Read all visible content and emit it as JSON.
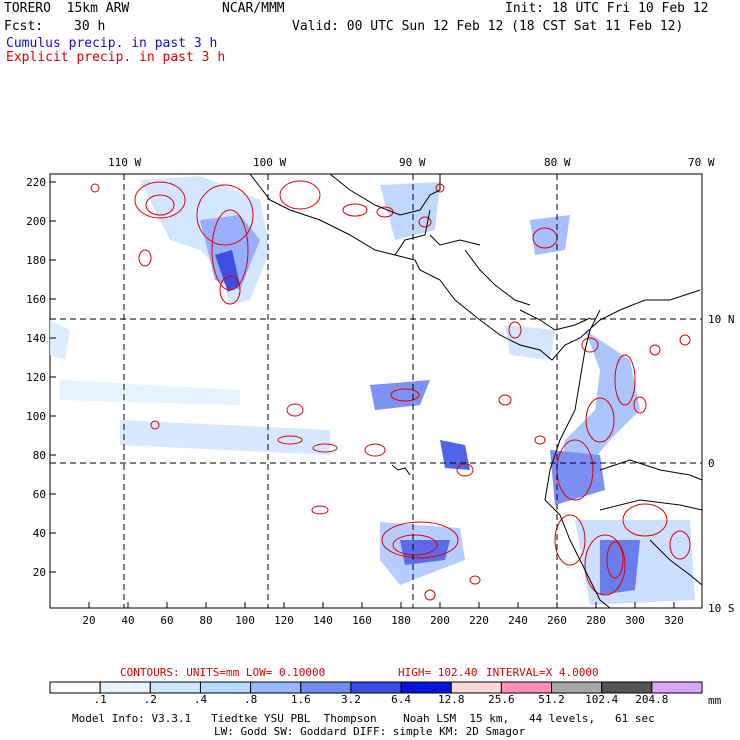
{
  "header": {
    "model": "TORERO  15km ARW",
    "org": "NCAR/MMM",
    "init": "Init: 18 UTC Fri 10 Feb 12",
    "fcst_label": "Fcst:",
    "fcst_value": "30 h",
    "valid": "Valid: 00 UTC Sun 12 Feb 12 (18 CST Sat 11 Feb 12)",
    "legend_cumulus": "Cumulus precip. in past 3 h",
    "legend_explicit": "Explicit precip. in past 3 h"
  },
  "map": {
    "top_lon_labels": [
      "110 W",
      "100 W",
      "90 W",
      "80 W",
      "70 W"
    ],
    "right_lat_labels": [
      "10 N",
      "0",
      "10 S"
    ],
    "left_axis_labels": [
      "220",
      "200",
      "180",
      "160",
      "140",
      "120",
      "100",
      "80",
      "60",
      "40",
      "20"
    ],
    "bottom_axis_labels": [
      "20",
      "40",
      "60",
      "80",
      "100",
      "120",
      "140",
      "160",
      "180",
      "200",
      "220",
      "240",
      "260",
      "280",
      "300",
      "320"
    ]
  },
  "contour_info": {
    "units": "CONTOURS:  UNITS=mm  LOW= 0.10000",
    "high": "HIGH=  102.40",
    "interval": "INTERVAL=X  4.0000"
  },
  "colorbar": {
    "unit": "mm",
    "labels": [
      ".1",
      ".2",
      ".4",
      ".8",
      "1.6",
      "3.2",
      "6.4",
      "12.8",
      "25.6",
      "51.2",
      "102.4",
      "204.8"
    ],
    "colors": [
      "#ffffff",
      "#e6f4ff",
      "#cce8ff",
      "#b3dcff",
      "#96b8ff",
      "#6f8cf0",
      "#3a4ce6",
      "#0a14dc",
      "#ffd7d7",
      "#ff8fb8",
      "#a8a8a8",
      "#555555",
      "#d9a6ff"
    ]
  },
  "footer": {
    "line1": "Model Info: V3.3.1   Tiedtke YSU PBL  Thompson    Noah LSM  15 km,   44 levels,   61 sec",
    "line2": "LW: Godd SW: Goddard DIFF: simple KM: 2D Smagor"
  }
}
